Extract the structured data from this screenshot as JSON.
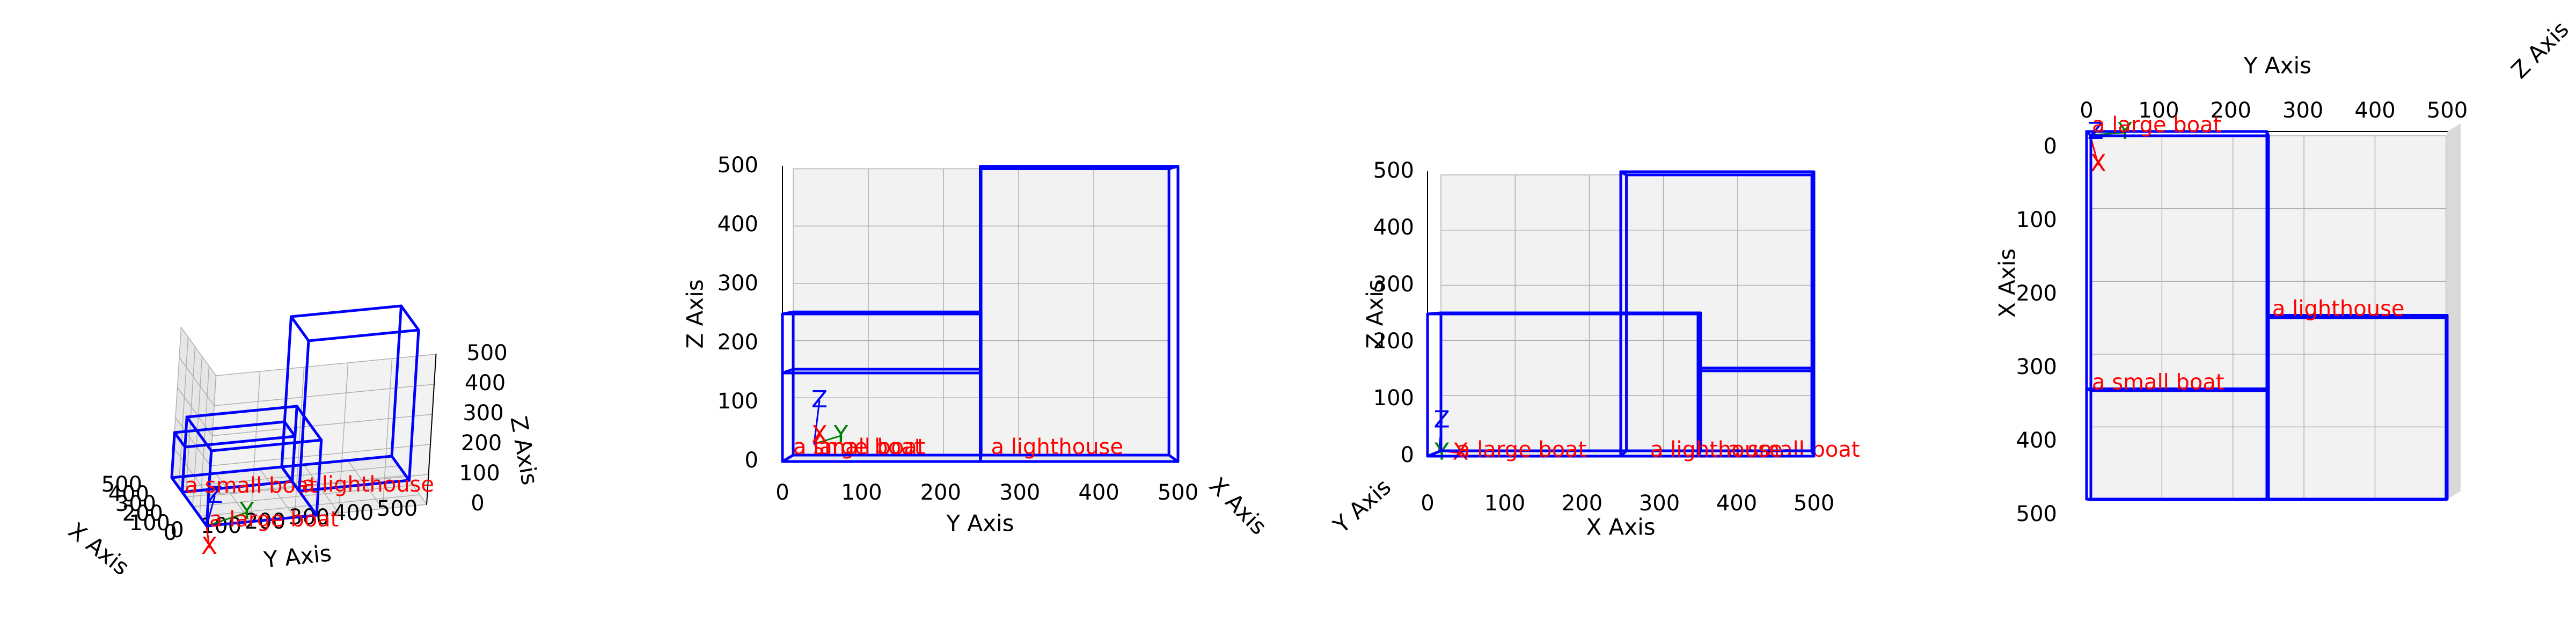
{
  "figure": {
    "colors": {
      "box": "#0000ff",
      "label": "#ff0000",
      "grid": "#b0b0b0",
      "pane_light": "#f2f2f2",
      "pane_mid": "#e6e6e6",
      "pane_dark": "#ebebeb",
      "axis_text": "#000000",
      "gizmo_x": "#ff0000",
      "gizmo_y": "#008000",
      "gizmo_z": "#0000ff"
    },
    "gizmo_labels": {
      "x": "X",
      "y": "Y",
      "z": "Z"
    }
  },
  "chart_data": [
    {
      "type": "3d-wireframe-boxes",
      "view": "perspective",
      "xlabel": "X Axis",
      "ylabel": "Y Axis",
      "zlabel": "Z Axis",
      "xlim": [
        0,
        500
      ],
      "ylim": [
        0,
        500
      ],
      "zlim": [
        0,
        500
      ],
      "x_ticks": [
        "0",
        "100",
        "200",
        "300",
        "400",
        "500"
      ],
      "y_ticks": [
        "0",
        "100",
        "200",
        "300",
        "400",
        "500"
      ],
      "z_ticks": [
        "0",
        "100",
        "200",
        "300",
        "400",
        "500"
      ],
      "grid": true,
      "boxes": [
        {
          "label": "a large boat",
          "x": [
            0,
            350
          ],
          "y": [
            0,
            250
          ],
          "z": [
            0,
            250
          ]
        },
        {
          "label": "a small boat",
          "x": [
            350,
            500
          ],
          "y": [
            0,
            250
          ],
          "z": [
            0,
            150
          ]
        },
        {
          "label": "a lighthouse",
          "x": [
            250,
            500
          ],
          "y": [
            250,
            500
          ],
          "z": [
            0,
            500
          ]
        }
      ]
    },
    {
      "type": "3d-wireframe-boxes",
      "view": "front (Y-Z)",
      "xlabel": "Y Axis",
      "ylabel": "Z Axis",
      "depth_label": "X Axis",
      "x_ticks": [
        "0",
        "100",
        "200",
        "300",
        "400",
        "500"
      ],
      "y_ticks": [
        "0",
        "100",
        "200",
        "300",
        "400",
        "500"
      ],
      "grid": true,
      "boxes": [
        {
          "label": "a large boat",
          "y": [
            0,
            250
          ],
          "z": [
            0,
            250
          ]
        },
        {
          "label": "a small boat",
          "y": [
            0,
            250
          ],
          "z": [
            0,
            150
          ]
        },
        {
          "label": "a lighthouse",
          "y": [
            250,
            500
          ],
          "z": [
            0,
            500
          ]
        }
      ]
    },
    {
      "type": "3d-wireframe-boxes",
      "view": "side (X-Z)",
      "xlabel": "X Axis",
      "ylabel": "Z Axis",
      "depth_label": "Y Axis",
      "x_ticks": [
        "0",
        "100",
        "200",
        "300",
        "400",
        "500"
      ],
      "y_ticks": [
        "0",
        "100",
        "200",
        "300",
        "400",
        "500"
      ],
      "grid": true,
      "boxes": [
        {
          "label": "a large boat",
          "x": [
            0,
            350
          ],
          "z": [
            0,
            250
          ]
        },
        {
          "label": "a small boat",
          "x": [
            350,
            500
          ],
          "z": [
            0,
            150
          ]
        },
        {
          "label": "a lighthouse",
          "x": [
            250,
            500
          ],
          "z": [
            0,
            500
          ]
        }
      ]
    },
    {
      "type": "3d-wireframe-boxes",
      "view": "top (X-Y)",
      "xlabel": "Y Axis",
      "ylabel": "X Axis",
      "depth_label": "Z Axis",
      "x_ticks": [
        "0",
        "100",
        "200",
        "300",
        "400",
        "500"
      ],
      "y_ticks": [
        "0",
        "100",
        "200",
        "300",
        "400",
        "500"
      ],
      "grid": true,
      "boxes": [
        {
          "label": "a large boat",
          "x": [
            0,
            350
          ],
          "y": [
            0,
            250
          ]
        },
        {
          "label": "a small boat",
          "x": [
            350,
            500
          ],
          "y": [
            0,
            250
          ]
        },
        {
          "label": "a lighthouse",
          "x": [
            250,
            500
          ],
          "y": [
            250,
            500
          ]
        }
      ]
    }
  ]
}
